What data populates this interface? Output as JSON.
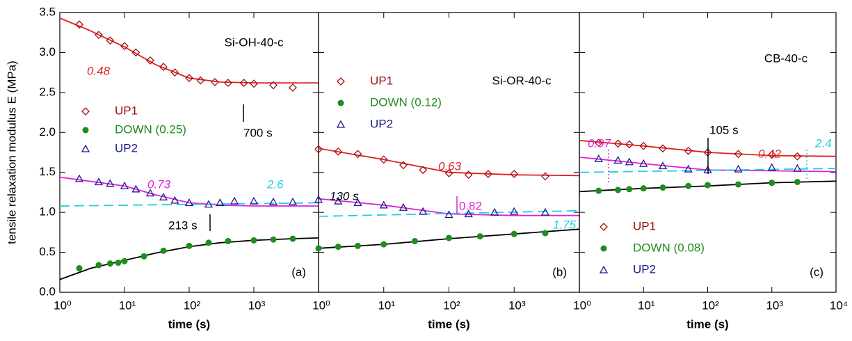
{
  "chart_data": [
    {
      "type": "scatter",
      "title": "Si-OH-40-c",
      "panel_label": "(a)",
      "ylabel": "tensile relaxation modulus E (MPa)",
      "xlabel": "time (s)",
      "xscale": "log",
      "xlim": [
        1,
        10000
      ],
      "ylim": [
        0,
        3.5
      ],
      "xticks": [
        {
          "value": 1,
          "label": "10⁰"
        },
        {
          "value": 10,
          "label": "10¹"
        },
        {
          "value": 100,
          "label": "10²"
        },
        {
          "value": 1000,
          "label": "10³"
        }
      ],
      "yticks": [
        {
          "value": 0,
          "label": "0.0"
        },
        0.5,
        {
          "value": 1,
          "label": "1.0"
        },
        1.5,
        {
          "value": 2,
          "label": "2.0"
        },
        2.5,
        {
          "value": 3,
          "label": "3.0"
        },
        3.5
      ],
      "legend": "center left",
      "series": [
        {
          "name": "UP1",
          "color": "#a01010",
          "marker": "diamond",
          "x": [
            2,
            4,
            6,
            10,
            15,
            25,
            40,
            60,
            100,
            150,
            250,
            400,
            700,
            1000,
            2000,
            4000
          ],
          "values": [
            3.35,
            3.22,
            3.15,
            3.08,
            3.0,
            2.9,
            2.82,
            2.75,
            2.68,
            2.65,
            2.63,
            2.62,
            2.62,
            2.61,
            2.59,
            2.56
          ]
        },
        {
          "name": "DOWN (0.25)",
          "color": "#1e8c1e",
          "marker": "circle",
          "x": [
            2,
            4,
            6,
            8,
            10,
            20,
            40,
            100,
            200,
            400,
            1000,
            2000,
            4000
          ],
          "values": [
            0.3,
            0.34,
            0.36,
            0.37,
            0.39,
            0.45,
            0.52,
            0.58,
            0.62,
            0.64,
            0.65,
            0.66,
            0.67
          ]
        },
        {
          "name": "UP2",
          "color": "#1c1c8c",
          "marker": "triangle",
          "x": [
            2,
            4,
            6,
            10,
            15,
            25,
            40,
            60,
            100,
            200,
            300,
            500,
            1000,
            2000,
            4000
          ],
          "values": [
            1.42,
            1.38,
            1.36,
            1.33,
            1.29,
            1.24,
            1.19,
            1.15,
            1.12,
            1.1,
            1.12,
            1.14,
            1.14,
            1.13,
            1.13
          ]
        }
      ],
      "fits": [
        {
          "color": "#e02020",
          "dash": "solid",
          "x": [
            1,
            3,
            10,
            30,
            100,
            300,
            1000,
            3000,
            10000
          ],
          "values": [
            3.43,
            3.27,
            3.07,
            2.85,
            2.68,
            2.63,
            2.62,
            2.62,
            2.62
          ]
        },
        {
          "color": "#000000",
          "dash": "solid",
          "x": [
            1,
            3,
            10,
            30,
            100,
            300,
            1000,
            4000,
            10000
          ],
          "values": [
            0.16,
            0.3,
            0.4,
            0.49,
            0.57,
            0.62,
            0.65,
            0.67,
            0.68
          ]
        },
        {
          "color": "#e020e0",
          "dash": "solid",
          "x": [
            1,
            10,
            30,
            100,
            300,
            1000,
            3000,
            10000
          ],
          "values": [
            1.44,
            1.33,
            1.22,
            1.12,
            1.09,
            1.08,
            1.08,
            1.08
          ]
        },
        {
          "color": "#20d0e0",
          "dash": "dashed",
          "x": [
            1,
            10000
          ],
          "values": [
            1.08,
            1.12
          ]
        }
      ],
      "annotations": [
        {
          "text": "0.48",
          "color": "#e02020"
        },
        {
          "text": "700 s",
          "color": "#000000"
        },
        {
          "text": "0.73",
          "color": "#e020e0"
        },
        {
          "text": "2.6",
          "color": "#20d0e0"
        },
        {
          "text": "213 s",
          "color": "#000000"
        }
      ]
    },
    {
      "type": "scatter",
      "title": "Si-OR-40-c",
      "panel_label": "(b)",
      "xlabel": "time (s)",
      "xscale": "log",
      "xlim": [
        1,
        10000
      ],
      "ylim": [
        0,
        3.5
      ],
      "xticks": [
        {
          "value": 1,
          "label": "10⁰"
        },
        {
          "value": 10,
          "label": "10¹"
        },
        {
          "value": 100,
          "label": "10²"
        },
        {
          "value": 1000,
          "label": "10³"
        }
      ],
      "legend": "upper left",
      "series": [
        {
          "name": "UP1",
          "color": "#a01010",
          "marker": "diamond",
          "x": [
            1,
            2,
            4,
            10,
            20,
            40,
            100,
            200,
            400,
            1000,
            3000
          ],
          "values": [
            1.79,
            1.76,
            1.73,
            1.66,
            1.59,
            1.53,
            1.49,
            1.47,
            1.48,
            1.48,
            1.45
          ]
        },
        {
          "name": "DOWN (0.12)",
          "color": "#1e8c1e",
          "marker": "circle",
          "x": [
            1,
            2,
            4,
            10,
            30,
            100,
            300,
            1000,
            3000
          ],
          "values": [
            0.55,
            0.57,
            0.58,
            0.6,
            0.64,
            0.68,
            0.7,
            0.73,
            0.74
          ]
        },
        {
          "name": "UP2",
          "color": "#1c1c8c",
          "marker": "triangle",
          "x": [
            1,
            2,
            4,
            10,
            20,
            40,
            100,
            200,
            500,
            1000,
            3000
          ],
          "values": [
            1.16,
            1.14,
            1.12,
            1.09,
            1.06,
            1.01,
            0.97,
            0.98,
            1.0,
            1.01,
            1.0
          ]
        }
      ],
      "fits": [
        {
          "color": "#e02020",
          "dash": "solid",
          "x": [
            1,
            10,
            100,
            1000,
            10000
          ],
          "values": [
            1.8,
            1.66,
            1.5,
            1.47,
            1.46
          ]
        },
        {
          "color": "#000000",
          "dash": "solid",
          "x": [
            1,
            10,
            100,
            1000,
            10000
          ],
          "values": [
            0.55,
            0.6,
            0.67,
            0.73,
            0.79
          ]
        },
        {
          "color": "#e020e0",
          "dash": "solid",
          "x": [
            1,
            10,
            100,
            1000,
            10000
          ],
          "values": [
            1.17,
            1.09,
            0.98,
            0.96,
            0.96
          ]
        },
        {
          "color": "#20d0e0",
          "dash": "dashed",
          "x": [
            1,
            10000
          ],
          "values": [
            0.95,
            1.02
          ]
        }
      ],
      "annotations": [
        {
          "text": "0.63",
          "color": "#e02020"
        },
        {
          "text": "0.82",
          "color": "#e020e0"
        },
        {
          "text": "130 s",
          "color": "#000000"
        },
        {
          "text": "1.75",
          "color": "#20d0e0"
        }
      ]
    },
    {
      "type": "scatter",
      "title": "CB-40-c",
      "panel_label": "(c)",
      "xlabel": "time (s)",
      "xscale": "log",
      "xlim": [
        1,
        10000
      ],
      "ylim": [
        0,
        3.5
      ],
      "xticks": [
        {
          "value": 1,
          "label": "10⁰"
        },
        {
          "value": 10,
          "label": "10¹"
        },
        {
          "value": 100,
          "label": "10²"
        },
        {
          "value": 1000,
          "label": "10³"
        },
        {
          "value": 10000,
          "label": "10⁴"
        }
      ],
      "legend": "lower left",
      "series": [
        {
          "name": "UP1",
          "color": "#a01010",
          "marker": "diamond",
          "x": [
            2,
            4,
            6,
            10,
            20,
            50,
            100,
            300,
            1000,
            2500
          ],
          "values": [
            1.87,
            1.86,
            1.85,
            1.83,
            1.8,
            1.77,
            1.75,
            1.73,
            1.72,
            1.7
          ]
        },
        {
          "name": "DOWN (0.08)",
          "color": "#1e8c1e",
          "marker": "circle",
          "x": [
            2,
            4,
            6,
            10,
            20,
            50,
            100,
            300,
            1000,
            2500
          ],
          "values": [
            1.27,
            1.28,
            1.29,
            1.3,
            1.31,
            1.33,
            1.34,
            1.35,
            1.37,
            1.38
          ]
        },
        {
          "name": "UP2",
          "color": "#1c1c8c",
          "marker": "triangle",
          "x": [
            2,
            4,
            6,
            10,
            20,
            50,
            100,
            300,
            1000,
            2500
          ],
          "values": [
            1.67,
            1.65,
            1.63,
            1.61,
            1.58,
            1.54,
            1.53,
            1.54,
            1.56,
            1.55
          ]
        }
      ],
      "fits": [
        {
          "color": "#e02020",
          "dash": "solid",
          "x": [
            1,
            10,
            100,
            1000,
            10000
          ],
          "values": [
            1.9,
            1.83,
            1.75,
            1.71,
            1.7
          ]
        },
        {
          "color": "#000000",
          "dash": "solid",
          "x": [
            1,
            10,
            100,
            1000,
            10000
          ],
          "values": [
            1.26,
            1.3,
            1.33,
            1.37,
            1.39
          ]
        },
        {
          "color": "#e020e0",
          "dash": "solid",
          "x": [
            1,
            10,
            100,
            1000,
            10000
          ],
          "values": [
            1.69,
            1.61,
            1.53,
            1.52,
            1.51
          ]
        },
        {
          "color": "#20d0e0",
          "dash": "dashed",
          "x": [
            1,
            10000
          ],
          "values": [
            1.5,
            1.55
          ]
        }
      ],
      "annotations": [
        {
          "text": "0.97",
          "color": "#e020e0"
        },
        {
          "text": "105 s",
          "color": "#000000"
        },
        {
          "text": "0.42",
          "color": "#e02020"
        },
        {
          "text": "2.4",
          "color": "#20d0e0"
        }
      ]
    }
  ]
}
